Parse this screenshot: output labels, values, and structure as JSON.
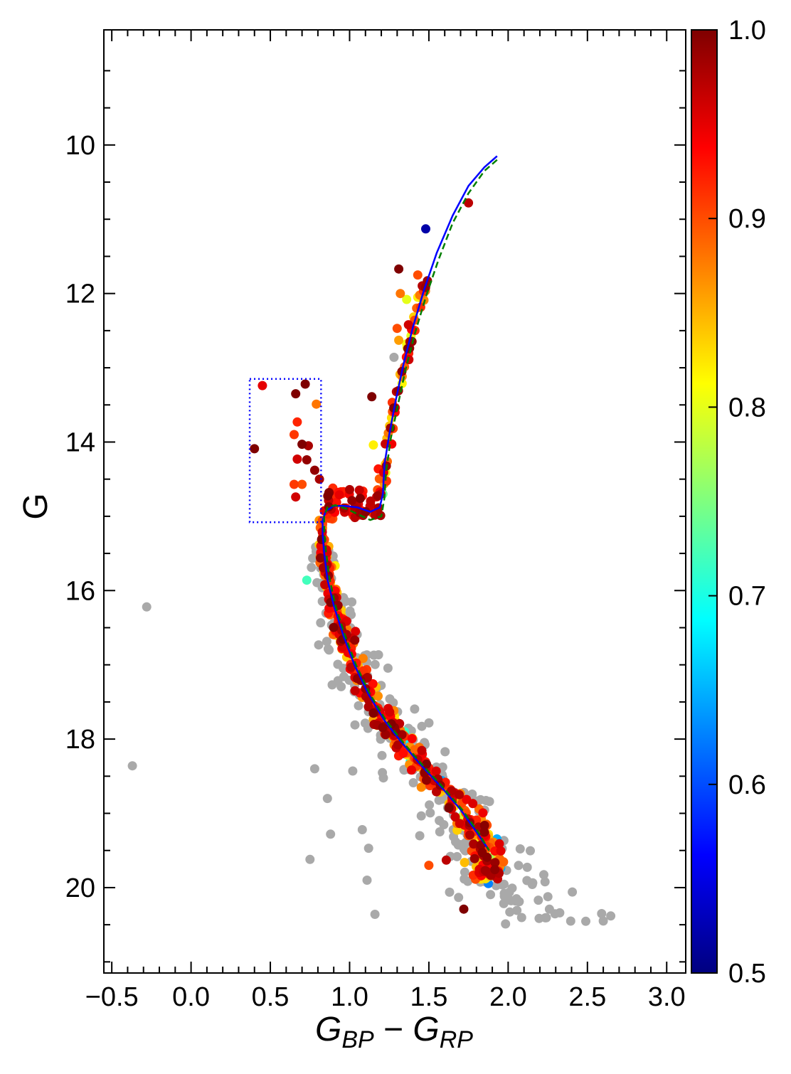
{
  "chart_data": {
    "type": "scatter",
    "title": "",
    "xlabel": {
      "base": "G",
      "sub1": "BP",
      "mid": " − ",
      "base2": "G",
      "sub2": "RP"
    },
    "ylabel": "G",
    "xlim": [
      -0.55,
      3.12
    ],
    "ylim": [
      21.15,
      8.45
    ],
    "y_inverted": true,
    "grid": false,
    "legend": "none",
    "x_ticks": [
      {
        "value": -0.5,
        "label": "−0.5"
      },
      {
        "value": 0.0,
        "label": "0.0"
      },
      {
        "value": 0.5,
        "label": "0.5"
      },
      {
        "value": 1.0,
        "label": "1.0"
      },
      {
        "value": 1.5,
        "label": "1.5"
      },
      {
        "value": 2.0,
        "label": "2.0"
      },
      {
        "value": 2.5,
        "label": "2.5"
      },
      {
        "value": 3.0,
        "label": "3.0"
      }
    ],
    "y_ticks": [
      {
        "value": 10,
        "label": "10"
      },
      {
        "value": 12,
        "label": "12"
      },
      {
        "value": 14,
        "label": "14"
      },
      {
        "value": 16,
        "label": "16"
      },
      {
        "value": 18,
        "label": "18"
      },
      {
        "value": 20,
        "label": "20"
      }
    ],
    "colorbar": {
      "range": [
        0.5,
        1.0
      ],
      "colormap": "jet",
      "ticks": [
        {
          "value": 0.5,
          "label": "0.5"
        },
        {
          "value": 0.6,
          "label": "0.6"
        },
        {
          "value": 0.7,
          "label": "0.7"
        },
        {
          "value": 0.8,
          "label": "0.8"
        },
        {
          "value": 0.9,
          "label": "0.9"
        },
        {
          "value": 1.0,
          "label": "1.0"
        }
      ],
      "stops": [
        "#00007f",
        "#0000ff",
        "#007fff",
        "#00ffff",
        "#7fff7f",
        "#ffff00",
        "#ff7f00",
        "#ff0000",
        "#7f0000"
      ]
    },
    "non_member_color": "#a9a9a9",
    "box": {
      "x": [
        0.37,
        0.82
      ],
      "y": [
        13.15,
        15.08
      ],
      "color": "#0000ff",
      "style": "dotted"
    },
    "isochrones": [
      {
        "color": "#0000ff",
        "style": "solid",
        "points": [
          [
            1.93,
            10.15
          ],
          [
            1.85,
            10.3
          ],
          [
            1.75,
            10.55
          ],
          [
            1.65,
            10.95
          ],
          [
            1.55,
            11.45
          ],
          [
            1.47,
            11.95
          ],
          [
            1.4,
            12.45
          ],
          [
            1.34,
            12.95
          ],
          [
            1.29,
            13.45
          ],
          [
            1.25,
            13.9
          ],
          [
            1.22,
            14.3
          ],
          [
            1.21,
            14.7
          ],
          [
            1.19,
            14.88
          ],
          [
            1.13,
            14.94
          ],
          [
            1.05,
            14.88
          ],
          [
            0.97,
            14.86
          ],
          [
            0.9,
            14.86
          ],
          [
            0.85,
            14.93
          ],
          [
            0.83,
            15.05
          ],
          [
            0.83,
            15.25
          ],
          [
            0.84,
            15.5
          ],
          [
            0.86,
            15.85
          ],
          [
            0.9,
            16.2
          ],
          [
            0.96,
            16.6
          ],
          [
            1.03,
            17.0
          ],
          [
            1.12,
            17.4
          ],
          [
            1.22,
            17.75
          ],
          [
            1.33,
            18.05
          ],
          [
            1.45,
            18.35
          ],
          [
            1.58,
            18.65
          ],
          [
            1.7,
            18.95
          ],
          [
            1.8,
            19.25
          ],
          [
            1.88,
            19.5
          ]
        ]
      },
      {
        "color": "#007f00",
        "style": "dashed",
        "points": [
          [
            1.93,
            10.2
          ],
          [
            1.85,
            10.35
          ],
          [
            1.75,
            10.65
          ],
          [
            1.65,
            11.05
          ],
          [
            1.56,
            11.55
          ],
          [
            1.48,
            12.05
          ],
          [
            1.41,
            12.55
          ],
          [
            1.35,
            13.05
          ],
          [
            1.3,
            13.55
          ],
          [
            1.26,
            13.95
          ],
          [
            1.23,
            14.4
          ],
          [
            1.22,
            14.75
          ],
          [
            1.2,
            15.0
          ],
          [
            1.13,
            15.05
          ],
          [
            1.06,
            14.98
          ],
          [
            0.98,
            14.9
          ],
          [
            0.91,
            14.85
          ],
          [
            0.86,
            14.88
          ],
          [
            0.84,
            15.0
          ],
          [
            0.84,
            15.2
          ],
          [
            0.85,
            15.45
          ],
          [
            0.87,
            15.8
          ],
          [
            0.91,
            16.2
          ],
          [
            0.97,
            16.6
          ],
          [
            1.04,
            17.0
          ],
          [
            1.13,
            17.4
          ],
          [
            1.23,
            17.75
          ],
          [
            1.34,
            18.05
          ],
          [
            1.46,
            18.35
          ],
          [
            1.59,
            18.65
          ],
          [
            1.71,
            18.95
          ],
          [
            1.81,
            19.25
          ],
          [
            1.88,
            19.5
          ]
        ]
      }
    ]
  }
}
